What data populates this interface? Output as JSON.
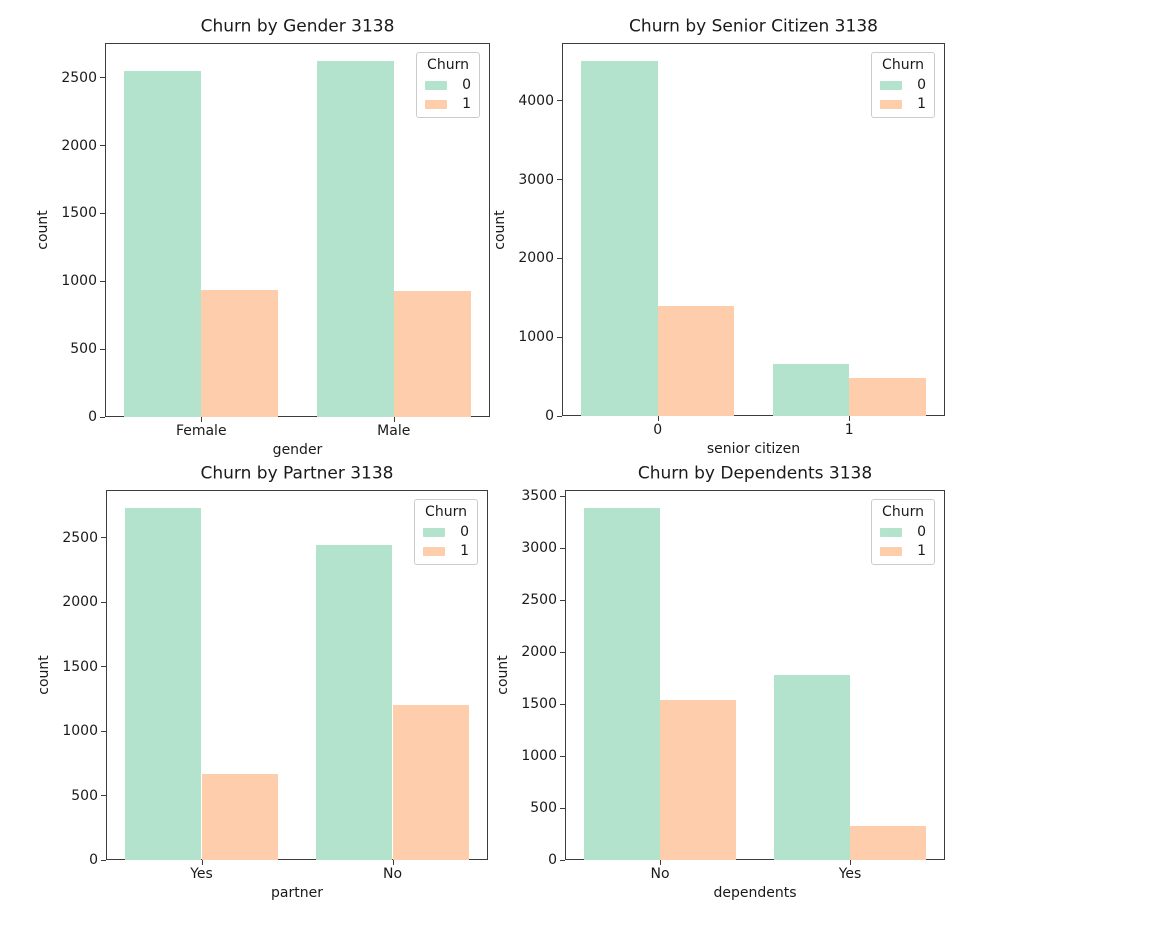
{
  "figure": {
    "background": "#ffffff"
  },
  "palette": {
    "churn_0": "#b3e2cd",
    "churn_1": "#fdcdac"
  },
  "legend": {
    "title": "Churn",
    "entries": [
      "0",
      "1"
    ]
  },
  "chart_data": [
    {
      "type": "bar",
      "title": "Churn by Gender 3138",
      "xlabel": "gender",
      "ylabel": "count",
      "categories": [
        "Female",
        "Male"
      ],
      "series": [
        {
          "name": "0",
          "color": "#b3e2cd",
          "values": [
            2549,
            2625
          ]
        },
        {
          "name": "1",
          "color": "#fdcdac",
          "values": [
            939,
            930
          ]
        }
      ],
      "ylim": [
        0,
        2756
      ],
      "yticks": [
        0,
        500,
        1000,
        1500,
        2000,
        2500
      ],
      "grid": false,
      "legend_position": "upper right"
    },
    {
      "type": "bar",
      "title": "Churn by Senior Citizen 3138",
      "xlabel": "senior citizen",
      "ylabel": "count",
      "categories": [
        "0",
        "1"
      ],
      "series": [
        {
          "name": "0",
          "color": "#b3e2cd",
          "values": [
            4508,
            666
          ]
        },
        {
          "name": "1",
          "color": "#fdcdac",
          "values": [
            1393,
            476
          ]
        }
      ],
      "ylim": [
        0,
        4733
      ],
      "yticks": [
        0,
        1000,
        2000,
        3000,
        4000
      ],
      "grid": false,
      "legend_position": "upper right"
    },
    {
      "type": "bar",
      "title": "Churn by Partner 3138",
      "xlabel": "partner",
      "ylabel": "count",
      "categories": [
        "Yes",
        "No"
      ],
      "series": [
        {
          "name": "0",
          "color": "#b3e2cd",
          "values": [
            2733,
            2441
          ]
        },
        {
          "name": "1",
          "color": "#fdcdac",
          "values": [
            669,
            1200
          ]
        }
      ],
      "ylim": [
        0,
        2870
      ],
      "yticks": [
        0,
        500,
        1000,
        1500,
        2000,
        2500
      ],
      "grid": false,
      "legend_position": "upper right"
    },
    {
      "type": "bar",
      "title": "Churn by Dependents 3138",
      "xlabel": "dependents",
      "ylabel": "count",
      "categories": [
        "No",
        "Yes"
      ],
      "series": [
        {
          "name": "0",
          "color": "#b3e2cd",
          "values": [
            3390,
            1784
          ]
        },
        {
          "name": "1",
          "color": "#fdcdac",
          "values": [
            1543,
            326
          ]
        }
      ],
      "ylim": [
        0,
        3560
      ],
      "yticks": [
        0,
        500,
        1000,
        1500,
        2000,
        2500,
        3000,
        3500
      ],
      "grid": false,
      "legend_position": "upper right"
    }
  ]
}
